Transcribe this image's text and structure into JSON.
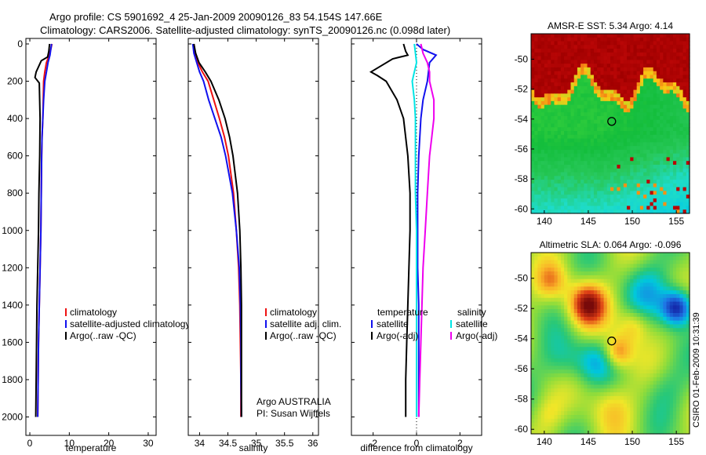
{
  "header": {
    "line1": "Argo profile: CS 5901692_4 25-Jan-2009 20090126_83 54.154S 147.66E",
    "line2": "Climatology: CARS2006. Satellite-adjusted climatology: synTS_20090126.nc (0.098d later)"
  },
  "side_label": "CSIRO 01-Feb-2009 10:31:39",
  "colors": {
    "clim": "#ee1111",
    "sat": "#1111ee",
    "argo": "#000000",
    "sat_cyan": "#00e5e5",
    "argo_mag": "#ee00ee"
  },
  "chart_data": [
    {
      "type": "line",
      "id": "temperature",
      "xlabel": "temperature",
      "xlim": [
        -1,
        32
      ],
      "ylim": [
        0,
        2050
      ],
      "y_reversed": true,
      "xticks": [
        0,
        10,
        20,
        30
      ],
      "yticks": [
        0,
        200,
        400,
        600,
        800,
        1000,
        1200,
        1400,
        1600,
        1800,
        2000
      ],
      "legend": [
        "climatology",
        "satellite-adjusted climatology",
        "Argo(..raw -QC)"
      ],
      "series": [
        {
          "name": "climatology",
          "color": "clim",
          "points": [
            [
              5.6,
              0
            ],
            [
              5.3,
              30
            ],
            [
              4.9,
              60
            ],
            [
              4.2,
              100
            ],
            [
              3.8,
              150
            ],
            [
              3.5,
              200
            ],
            [
              3.4,
              300
            ],
            [
              3.3,
              400
            ],
            [
              3.1,
              500
            ],
            [
              3.0,
              600
            ],
            [
              2.9,
              800
            ],
            [
              2.8,
              1000
            ],
            [
              2.6,
              1200
            ],
            [
              2.4,
              1400
            ],
            [
              2.2,
              1600
            ],
            [
              2.1,
              1800
            ],
            [
              2.0,
              2000
            ]
          ]
        },
        {
          "name": "satellite-adjusted climatology",
          "color": "sat",
          "points": [
            [
              5.5,
              0
            ],
            [
              5.3,
              30
            ],
            [
              5.1,
              60
            ],
            [
              4.6,
              100
            ],
            [
              4.2,
              150
            ],
            [
              3.8,
              200
            ],
            [
              3.5,
              300
            ],
            [
              3.3,
              400
            ],
            [
              3.1,
              500
            ],
            [
              3.0,
              600
            ],
            [
              2.9,
              800
            ],
            [
              2.8,
              1000
            ],
            [
              2.6,
              1200
            ],
            [
              2.4,
              1400
            ],
            [
              2.2,
              1600
            ],
            [
              2.1,
              1800
            ],
            [
              2.0,
              2000
            ]
          ]
        },
        {
          "name": "Argo(..raw -QC)",
          "color": "argo",
          "points": [
            [
              5.0,
              0
            ],
            [
              4.8,
              40
            ],
            [
              4.5,
              70
            ],
            [
              2.9,
              90
            ],
            [
              1.6,
              150
            ],
            [
              1.3,
              180
            ],
            [
              2.4,
              210
            ],
            [
              2.6,
              400
            ],
            [
              2.5,
              600
            ],
            [
              2.3,
              800
            ],
            [
              2.2,
              1000
            ],
            [
              2.0,
              1200
            ],
            [
              1.8,
              1400
            ],
            [
              1.7,
              1600
            ],
            [
              1.6,
              1800
            ],
            [
              1.5,
              2000
            ]
          ]
        }
      ]
    },
    {
      "type": "line",
      "id": "salinity",
      "xlabel": "salinity",
      "xlim": [
        33.8,
        36.1
      ],
      "ylim": [
        0,
        2050
      ],
      "y_reversed": true,
      "xticks": [
        34,
        34.5,
        35,
        35.5,
        36
      ],
      "legend": [
        "climatology",
        "satellite adj. clim.",
        "Argo(..raw -QC)"
      ],
      "annotation": [
        "Argo AUSTRALIA",
        "PI: Susan Wijffels"
      ],
      "series": [
        {
          "name": "climatology",
          "color": "clim",
          "points": [
            [
              33.9,
              0
            ],
            [
              33.92,
              50
            ],
            [
              33.97,
              100
            ],
            [
              34.05,
              150
            ],
            [
              34.15,
              200
            ],
            [
              34.25,
              300
            ],
            [
              34.35,
              400
            ],
            [
              34.44,
              500
            ],
            [
              34.51,
              600
            ],
            [
              34.6,
              800
            ],
            [
              34.65,
              1000
            ],
            [
              34.69,
              1200
            ],
            [
              34.71,
              1400
            ],
            [
              34.72,
              1600
            ],
            [
              34.73,
              1800
            ],
            [
              34.73,
              2000
            ]
          ]
        },
        {
          "name": "satellite adj. clim.",
          "color": "sat",
          "points": [
            [
              33.88,
              0
            ],
            [
              33.9,
              50
            ],
            [
              33.95,
              100
            ],
            [
              34.0,
              150
            ],
            [
              34.07,
              200
            ],
            [
              34.16,
              300
            ],
            [
              34.27,
              400
            ],
            [
              34.38,
              500
            ],
            [
              34.46,
              600
            ],
            [
              34.58,
              800
            ],
            [
              34.65,
              1000
            ],
            [
              34.7,
              1200
            ],
            [
              34.72,
              1400
            ],
            [
              34.73,
              1600
            ],
            [
              34.73,
              1800
            ],
            [
              34.74,
              2000
            ]
          ]
        },
        {
          "name": "Argo(..raw -QC)",
          "color": "argo",
          "points": [
            [
              33.9,
              0
            ],
            [
              33.93,
              50
            ],
            [
              33.99,
              100
            ],
            [
              34.1,
              150
            ],
            [
              34.2,
              200
            ],
            [
              34.34,
              300
            ],
            [
              34.45,
              400
            ],
            [
              34.53,
              500
            ],
            [
              34.59,
              600
            ],
            [
              34.67,
              800
            ],
            [
              34.71,
              1000
            ],
            [
              34.73,
              1200
            ],
            [
              34.74,
              1400
            ],
            [
              34.74,
              1600
            ],
            [
              34.74,
              1800
            ],
            [
              34.74,
              2000
            ]
          ]
        }
      ]
    },
    {
      "type": "line",
      "id": "difference",
      "xlabel": "difference from climatology",
      "xlim": [
        -3,
        3
      ],
      "ylim": [
        0,
        2050
      ],
      "y_reversed": true,
      "xticks": [
        -2,
        0,
        2
      ],
      "legend_left_title": "temperature",
      "legend_right_title": "salinity",
      "legend_left": [
        "satellite",
        "Argo(-adj)"
      ],
      "legend_right": [
        "satellite",
        "Argo(-adj)"
      ],
      "series": [
        {
          "name": "temperature satellite",
          "color": "sat",
          "points": [
            [
              0.0,
              0
            ],
            [
              0.3,
              30
            ],
            [
              0.9,
              60
            ],
            [
              0.6,
              100
            ],
            [
              0.5,
              200
            ],
            [
              0.3,
              300
            ],
            [
              0.2,
              400
            ],
            [
              0.1,
              600
            ],
            [
              0.05,
              800
            ],
            [
              0.05,
              1000
            ],
            [
              0.05,
              1200
            ],
            [
              0.1,
              1400
            ],
            [
              0.1,
              1600
            ],
            [
              0.1,
              1800
            ],
            [
              0.1,
              2000
            ]
          ]
        },
        {
          "name": "temperature Argo(-adj)",
          "color": "argo",
          "points": [
            [
              -0.6,
              0
            ],
            [
              -0.5,
              40
            ],
            [
              -0.4,
              60
            ],
            [
              -1.1,
              80
            ],
            [
              -2.1,
              150
            ],
            [
              -1.8,
              170
            ],
            [
              -1.4,
              200
            ],
            [
              -0.9,
              300
            ],
            [
              -0.6,
              400
            ],
            [
              -0.4,
              600
            ],
            [
              -0.3,
              800
            ],
            [
              -0.3,
              1000
            ],
            [
              -0.35,
              1200
            ],
            [
              -0.4,
              1400
            ],
            [
              -0.45,
              1600
            ],
            [
              -0.5,
              1800
            ],
            [
              -0.5,
              2000
            ]
          ]
        },
        {
          "name": "salinity satellite",
          "color": "sat_cyan",
          "points": [
            [
              -0.1,
              0
            ],
            [
              -0.05,
              50
            ],
            [
              0.0,
              100
            ],
            [
              -0.1,
              150
            ],
            [
              -0.2,
              200
            ],
            [
              -0.1,
              300
            ],
            [
              -0.05,
              400
            ],
            [
              -0.05,
              600
            ],
            [
              -0.05,
              800
            ],
            [
              0.0,
              1000
            ],
            [
              0.0,
              1200
            ],
            [
              0.0,
              1400
            ],
            [
              0.0,
              1600
            ],
            [
              0.0,
              1800
            ],
            [
              0.0,
              2000
            ]
          ]
        },
        {
          "name": "salinity Argo(-adj)",
          "color": "argo_mag",
          "points": [
            [
              0.2,
              0
            ],
            [
              0.3,
              50
            ],
            [
              0.5,
              100
            ],
            [
              0.6,
              150
            ],
            [
              0.6,
              200
            ],
            [
              0.8,
              300
            ],
            [
              0.8,
              400
            ],
            [
              0.7,
              500
            ],
            [
              0.6,
              600
            ],
            [
              0.5,
              800
            ],
            [
              0.4,
              1000
            ],
            [
              0.3,
              1200
            ],
            [
              0.25,
              1400
            ],
            [
              0.2,
              1600
            ],
            [
              0.15,
              1800
            ],
            [
              0.1,
              2000
            ]
          ]
        }
      ]
    },
    {
      "type": "heatmap",
      "id": "sst_map",
      "title": "AMSR-E SST: 5.34 Argo: 4.14",
      "xticks": [
        140,
        145,
        150,
        155
      ],
      "yticks": [
        -50,
        -52,
        -54,
        -56,
        -58,
        -60
      ],
      "xlim": [
        138.5,
        156.5
      ],
      "ylim": [
        -60.3,
        -48.3
      ],
      "marker": [
        147.66,
        -54.154
      ]
    },
    {
      "type": "heatmap",
      "id": "sla_map",
      "title": "Altimetric SLA: 0.064 Argo: -0.096",
      "xticks": [
        140,
        145,
        150,
        155
      ],
      "yticks": [
        -50,
        -52,
        -54,
        -56,
        -58,
        -60
      ],
      "xlim": [
        138.5,
        156.5
      ],
      "ylim": [
        -60.3,
        -48.3
      ],
      "marker": [
        147.66,
        -54.154
      ]
    }
  ]
}
